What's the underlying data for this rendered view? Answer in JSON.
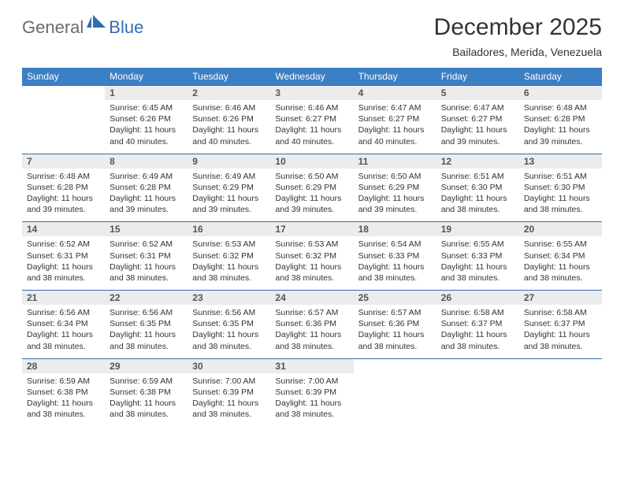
{
  "logo": {
    "general": "General",
    "blue": "Blue"
  },
  "title": "December 2025",
  "location": "Bailadores, Merida, Venezuela",
  "colors": {
    "header_bg": "#3b7fc4",
    "header_fg": "#ffffff",
    "daynum_bg": "#ececec",
    "row_divider": "#2f6fb0",
    "logo_gray": "#6b6b6b",
    "logo_blue": "#2f6fb0"
  },
  "weekdays": [
    "Sunday",
    "Monday",
    "Tuesday",
    "Wednesday",
    "Thursday",
    "Friday",
    "Saturday"
  ],
  "weeks": [
    [
      {
        "empty": true
      },
      {
        "n": "1",
        "sr": "Sunrise: 6:45 AM",
        "ss": "Sunset: 6:26 PM",
        "dl": "Daylight: 11 hours and 40 minutes."
      },
      {
        "n": "2",
        "sr": "Sunrise: 6:46 AM",
        "ss": "Sunset: 6:26 PM",
        "dl": "Daylight: 11 hours and 40 minutes."
      },
      {
        "n": "3",
        "sr": "Sunrise: 6:46 AM",
        "ss": "Sunset: 6:27 PM",
        "dl": "Daylight: 11 hours and 40 minutes."
      },
      {
        "n": "4",
        "sr": "Sunrise: 6:47 AM",
        "ss": "Sunset: 6:27 PM",
        "dl": "Daylight: 11 hours and 40 minutes."
      },
      {
        "n": "5",
        "sr": "Sunrise: 6:47 AM",
        "ss": "Sunset: 6:27 PM",
        "dl": "Daylight: 11 hours and 39 minutes."
      },
      {
        "n": "6",
        "sr": "Sunrise: 6:48 AM",
        "ss": "Sunset: 6:28 PM",
        "dl": "Daylight: 11 hours and 39 minutes."
      }
    ],
    [
      {
        "n": "7",
        "sr": "Sunrise: 6:48 AM",
        "ss": "Sunset: 6:28 PM",
        "dl": "Daylight: 11 hours and 39 minutes."
      },
      {
        "n": "8",
        "sr": "Sunrise: 6:49 AM",
        "ss": "Sunset: 6:28 PM",
        "dl": "Daylight: 11 hours and 39 minutes."
      },
      {
        "n": "9",
        "sr": "Sunrise: 6:49 AM",
        "ss": "Sunset: 6:29 PM",
        "dl": "Daylight: 11 hours and 39 minutes."
      },
      {
        "n": "10",
        "sr": "Sunrise: 6:50 AM",
        "ss": "Sunset: 6:29 PM",
        "dl": "Daylight: 11 hours and 39 minutes."
      },
      {
        "n": "11",
        "sr": "Sunrise: 6:50 AM",
        "ss": "Sunset: 6:29 PM",
        "dl": "Daylight: 11 hours and 39 minutes."
      },
      {
        "n": "12",
        "sr": "Sunrise: 6:51 AM",
        "ss": "Sunset: 6:30 PM",
        "dl": "Daylight: 11 hours and 38 minutes."
      },
      {
        "n": "13",
        "sr": "Sunrise: 6:51 AM",
        "ss": "Sunset: 6:30 PM",
        "dl": "Daylight: 11 hours and 38 minutes."
      }
    ],
    [
      {
        "n": "14",
        "sr": "Sunrise: 6:52 AM",
        "ss": "Sunset: 6:31 PM",
        "dl": "Daylight: 11 hours and 38 minutes."
      },
      {
        "n": "15",
        "sr": "Sunrise: 6:52 AM",
        "ss": "Sunset: 6:31 PM",
        "dl": "Daylight: 11 hours and 38 minutes."
      },
      {
        "n": "16",
        "sr": "Sunrise: 6:53 AM",
        "ss": "Sunset: 6:32 PM",
        "dl": "Daylight: 11 hours and 38 minutes."
      },
      {
        "n": "17",
        "sr": "Sunrise: 6:53 AM",
        "ss": "Sunset: 6:32 PM",
        "dl": "Daylight: 11 hours and 38 minutes."
      },
      {
        "n": "18",
        "sr": "Sunrise: 6:54 AM",
        "ss": "Sunset: 6:33 PM",
        "dl": "Daylight: 11 hours and 38 minutes."
      },
      {
        "n": "19",
        "sr": "Sunrise: 6:55 AM",
        "ss": "Sunset: 6:33 PM",
        "dl": "Daylight: 11 hours and 38 minutes."
      },
      {
        "n": "20",
        "sr": "Sunrise: 6:55 AM",
        "ss": "Sunset: 6:34 PM",
        "dl": "Daylight: 11 hours and 38 minutes."
      }
    ],
    [
      {
        "n": "21",
        "sr": "Sunrise: 6:56 AM",
        "ss": "Sunset: 6:34 PM",
        "dl": "Daylight: 11 hours and 38 minutes."
      },
      {
        "n": "22",
        "sr": "Sunrise: 6:56 AM",
        "ss": "Sunset: 6:35 PM",
        "dl": "Daylight: 11 hours and 38 minutes."
      },
      {
        "n": "23",
        "sr": "Sunrise: 6:56 AM",
        "ss": "Sunset: 6:35 PM",
        "dl": "Daylight: 11 hours and 38 minutes."
      },
      {
        "n": "24",
        "sr": "Sunrise: 6:57 AM",
        "ss": "Sunset: 6:36 PM",
        "dl": "Daylight: 11 hours and 38 minutes."
      },
      {
        "n": "25",
        "sr": "Sunrise: 6:57 AM",
        "ss": "Sunset: 6:36 PM",
        "dl": "Daylight: 11 hours and 38 minutes."
      },
      {
        "n": "26",
        "sr": "Sunrise: 6:58 AM",
        "ss": "Sunset: 6:37 PM",
        "dl": "Daylight: 11 hours and 38 minutes."
      },
      {
        "n": "27",
        "sr": "Sunrise: 6:58 AM",
        "ss": "Sunset: 6:37 PM",
        "dl": "Daylight: 11 hours and 38 minutes."
      }
    ],
    [
      {
        "n": "28",
        "sr": "Sunrise: 6:59 AM",
        "ss": "Sunset: 6:38 PM",
        "dl": "Daylight: 11 hours and 38 minutes."
      },
      {
        "n": "29",
        "sr": "Sunrise: 6:59 AM",
        "ss": "Sunset: 6:38 PM",
        "dl": "Daylight: 11 hours and 38 minutes."
      },
      {
        "n": "30",
        "sr": "Sunrise: 7:00 AM",
        "ss": "Sunset: 6:39 PM",
        "dl": "Daylight: 11 hours and 38 minutes."
      },
      {
        "n": "31",
        "sr": "Sunrise: 7:00 AM",
        "ss": "Sunset: 6:39 PM",
        "dl": "Daylight: 11 hours and 38 minutes."
      },
      {
        "empty": true
      },
      {
        "empty": true
      },
      {
        "empty": true
      }
    ]
  ]
}
